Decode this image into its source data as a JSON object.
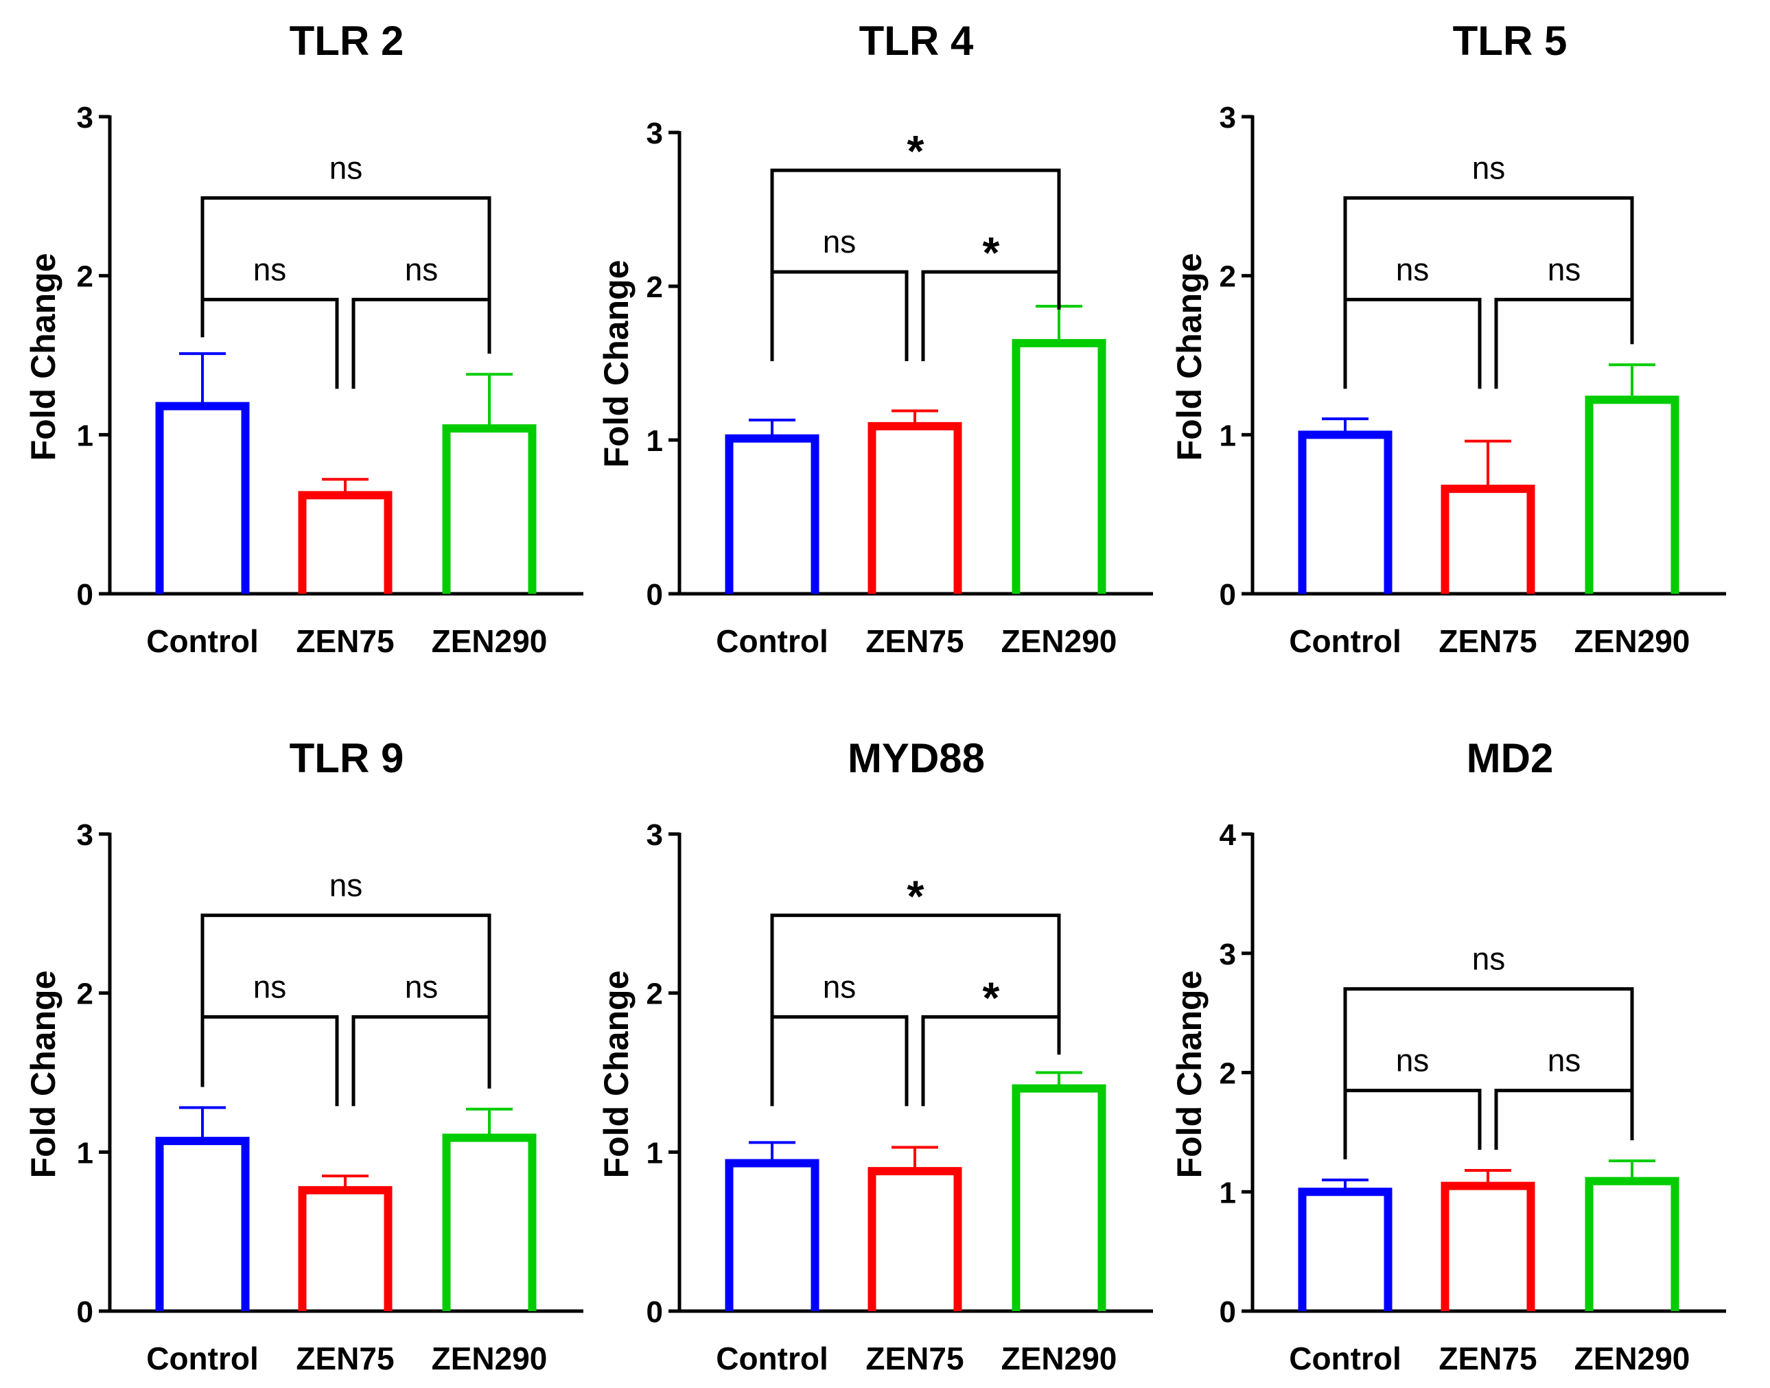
{
  "figure_title": "TLR and adaptor gene expression panels",
  "colors": {
    "Control": "#0000ff",
    "ZEN75": "#ff0000",
    "ZEN290": "#00cc00",
    "axis": "#000000"
  },
  "chart_data": [
    {
      "type": "bar",
      "title": "TLR 2",
      "ylabel": "Fold Change",
      "xlabel": "",
      "categories": [
        "Control",
        "ZEN75",
        "ZEN290"
      ],
      "values": [
        1.18,
        0.62,
        1.04
      ],
      "errors": [
        0.33,
        0.1,
        0.34
      ],
      "ylim": [
        0,
        3
      ],
      "yticks": [
        0,
        1,
        2,
        3
      ],
      "comparisons": [
        {
          "from": 0,
          "to": 1,
          "label": "ns"
        },
        {
          "from": 1,
          "to": 2,
          "label": "ns"
        },
        {
          "from": 0,
          "to": 2,
          "label": "ns"
        }
      ]
    },
    {
      "type": "bar",
      "title": "TLR 4",
      "ylabel": "Fold Change",
      "xlabel": "",
      "categories": [
        "Control",
        "ZEN75",
        "ZEN290"
      ],
      "values": [
        1.01,
        1.09,
        1.63
      ],
      "errors": [
        0.12,
        0.1,
        0.24
      ],
      "ylim": [
        0,
        3
      ],
      "yticks": [
        0,
        1,
        2,
        3
      ],
      "comparisons": [
        {
          "from": 0,
          "to": 1,
          "label": "ns"
        },
        {
          "from": 1,
          "to": 2,
          "label": "*"
        },
        {
          "from": 0,
          "to": 2,
          "label": "*"
        }
      ]
    },
    {
      "type": "bar",
      "title": "TLR 5",
      "ylabel": "Fold Change",
      "xlabel": "",
      "categories": [
        "Control",
        "ZEN75",
        "ZEN290"
      ],
      "values": [
        1.0,
        0.66,
        1.22
      ],
      "errors": [
        0.1,
        0.3,
        0.22
      ],
      "ylim": [
        0,
        3
      ],
      "yticks": [
        0,
        1,
        2,
        3
      ],
      "comparisons": [
        {
          "from": 0,
          "to": 1,
          "label": "ns"
        },
        {
          "from": 1,
          "to": 2,
          "label": "ns"
        },
        {
          "from": 0,
          "to": 2,
          "label": "ns"
        }
      ]
    },
    {
      "type": "bar",
      "title": "TLR 9",
      "ylabel": "Fold Change",
      "xlabel": "",
      "categories": [
        "Control",
        "ZEN75",
        "ZEN290"
      ],
      "values": [
        1.07,
        0.76,
        1.09
      ],
      "errors": [
        0.21,
        0.09,
        0.18
      ],
      "ylim": [
        0,
        3
      ],
      "yticks": [
        0,
        1,
        2,
        3
      ],
      "comparisons": [
        {
          "from": 0,
          "to": 1,
          "label": "ns"
        },
        {
          "from": 1,
          "to": 2,
          "label": "ns"
        },
        {
          "from": 0,
          "to": 2,
          "label": "ns"
        }
      ]
    },
    {
      "type": "bar",
      "title": "MYD88",
      "ylabel": "Fold Change",
      "xlabel": "",
      "categories": [
        "Control",
        "ZEN75",
        "ZEN290"
      ],
      "values": [
        0.93,
        0.88,
        1.4
      ],
      "errors": [
        0.13,
        0.15,
        0.1
      ],
      "ylim": [
        0,
        3
      ],
      "yticks": [
        0,
        1,
        2,
        3
      ],
      "comparisons": [
        {
          "from": 0,
          "to": 1,
          "label": "ns"
        },
        {
          "from": 1,
          "to": 2,
          "label": "*"
        },
        {
          "from": 0,
          "to": 2,
          "label": "*"
        }
      ]
    },
    {
      "type": "bar",
      "title": "MD2",
      "ylabel": "Fold Change",
      "xlabel": "",
      "categories": [
        "Control",
        "ZEN75",
        "ZEN290"
      ],
      "values": [
        1.0,
        1.05,
        1.09
      ],
      "errors": [
        0.1,
        0.13,
        0.17
      ],
      "ylim": [
        0,
        4
      ],
      "yticks": [
        0,
        1,
        2,
        3,
        4
      ],
      "comparisons": [
        {
          "from": 0,
          "to": 1,
          "label": "ns"
        },
        {
          "from": 1,
          "to": 2,
          "label": "ns"
        },
        {
          "from": 0,
          "to": 2,
          "label": "ns"
        }
      ]
    }
  ]
}
